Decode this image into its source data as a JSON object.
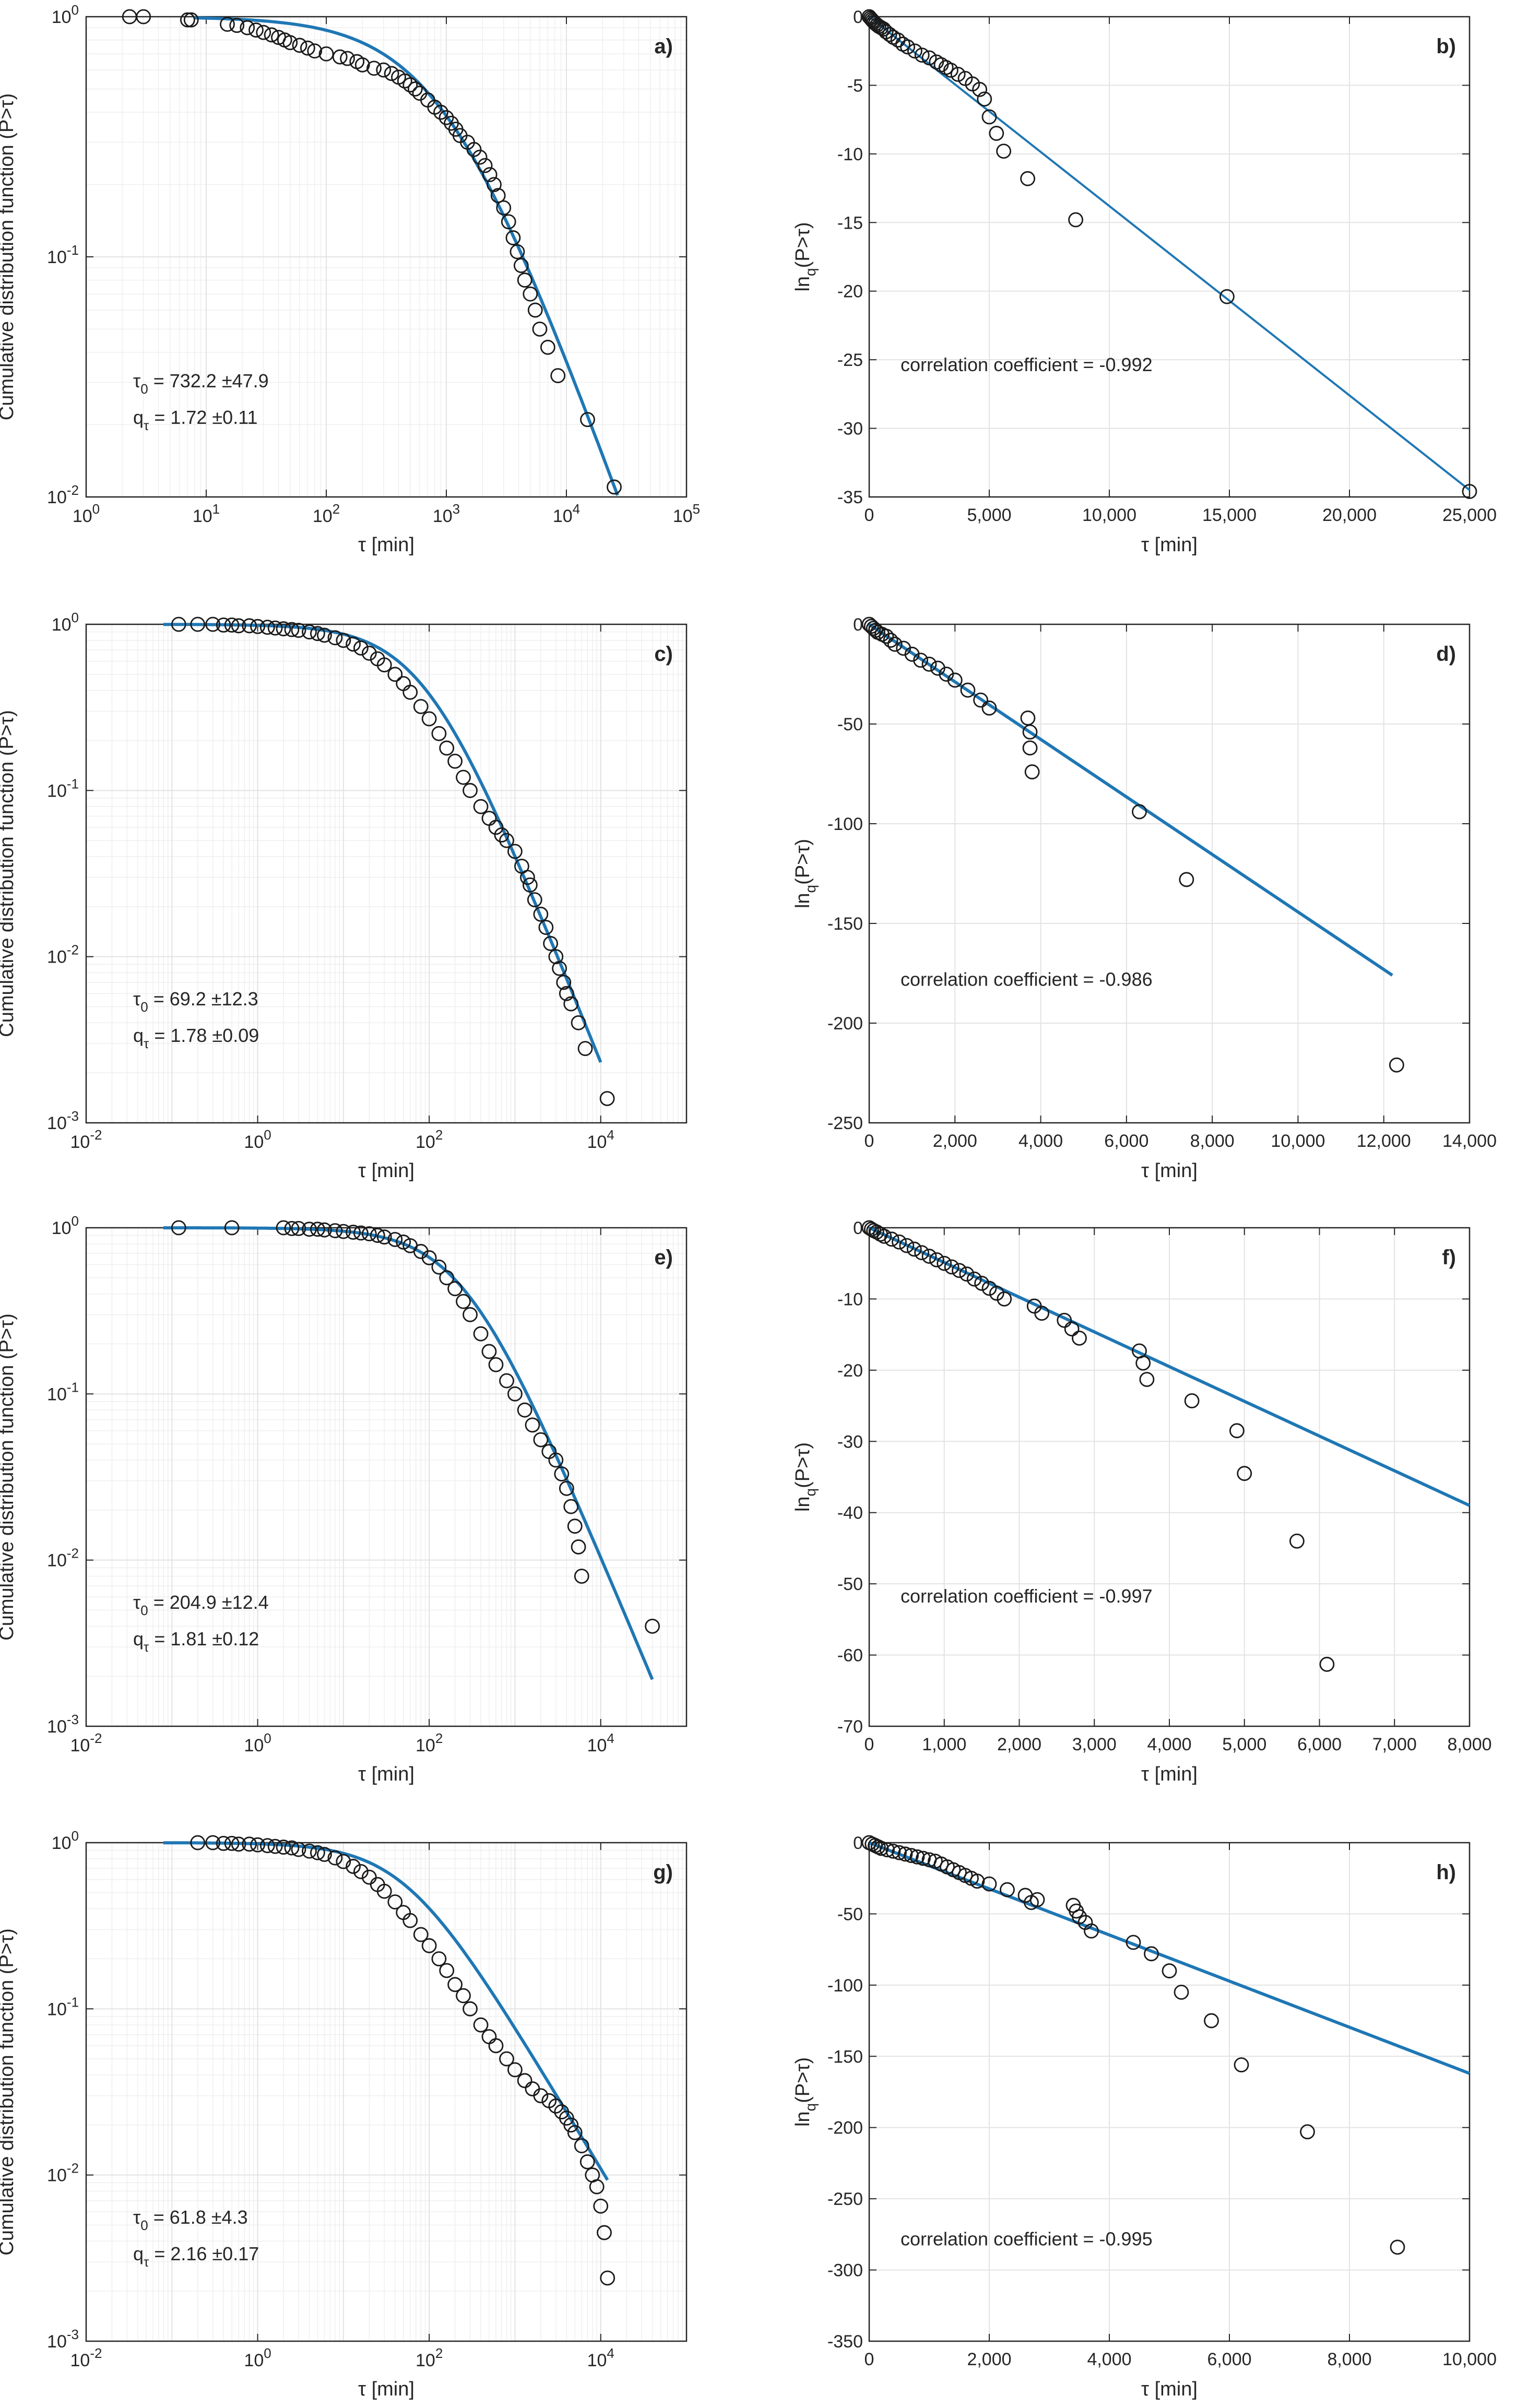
{
  "charts": [
    {
      "id": "a",
      "type": "scatter",
      "panel_label": "a)",
      "xscale": "log",
      "yscale": "log",
      "xlabel": "τ [min]",
      "ylabel": "Cumulative distribution function (P>τ)",
      "xlim": [
        1,
        100000
      ],
      "ylim": [
        0.01,
        1
      ],
      "xticks": [
        1,
        10,
        100,
        1000,
        10000,
        100000
      ],
      "xtick_labels": [
        [
          "10",
          "0"
        ],
        [
          "10",
          "1"
        ],
        [
          "10",
          "2"
        ],
        [
          "10",
          "3"
        ],
        [
          "10",
          "4"
        ],
        [
          "10",
          "5"
        ]
      ],
      "yticks": [
        0.01,
        0.1,
        1
      ],
      "ytick_labels": [
        [
          "10",
          "-2"
        ],
        [
          "10",
          "-1"
        ],
        [
          "10",
          "0"
        ]
      ],
      "tau0": 732.2,
      "q": 1.72,
      "annotations": [
        {
          "base": "τ",
          "sub": "0",
          "rest": " = 732.2 ±47.9"
        },
        {
          "base": "q",
          "sub": "τ",
          "rest": " = 1.72 ±0.11"
        }
      ],
      "grid": true,
      "points_x": [
        2.3,
        3.0,
        7.0,
        7.5,
        15,
        18,
        22,
        26,
        30,
        35,
        40,
        45,
        50,
        60,
        70,
        80,
        100,
        130,
        150,
        180,
        200,
        250,
        300,
        350,
        400,
        450,
        500,
        550,
        600,
        700,
        800,
        900,
        1000,
        1100,
        1200,
        1300,
        1500,
        1700,
        1900,
        2100,
        2300,
        2500,
        2700,
        3000,
        3300,
        3600,
        3900,
        4200,
        4500,
        5000,
        5500,
        6000,
        7000,
        8500,
        15000,
        25000
      ],
      "points_y": [
        1.0,
        1.0,
        0.97,
        0.97,
        0.93,
        0.92,
        0.9,
        0.88,
        0.86,
        0.84,
        0.82,
        0.8,
        0.78,
        0.76,
        0.74,
        0.72,
        0.7,
        0.68,
        0.67,
        0.65,
        0.63,
        0.61,
        0.6,
        0.58,
        0.56,
        0.54,
        0.52,
        0.5,
        0.48,
        0.45,
        0.42,
        0.4,
        0.38,
        0.36,
        0.34,
        0.32,
        0.3,
        0.28,
        0.26,
        0.24,
        0.22,
        0.2,
        0.18,
        0.16,
        0.14,
        0.12,
        0.105,
        0.092,
        0.08,
        0.07,
        0.06,
        0.05,
        0.042,
        0.032,
        0.021,
        0.011
      ]
    },
    {
      "id": "b",
      "type": "scatter",
      "panel_label": "b)",
      "xscale": "linear",
      "yscale": "linear",
      "xlabel": "τ [min]",
      "ylabel_base": "ln",
      "ylabel_sub": "q",
      "ylabel_rest": "(P>τ)",
      "xlim": [
        0,
        25000
      ],
      "ylim": [
        -35,
        0
      ],
      "xticks": [
        0,
        5000,
        10000,
        15000,
        20000,
        25000
      ],
      "xtick_labels": [
        "0",
        "5,000",
        "10,000",
        "15,000",
        "20,000",
        "25,000"
      ],
      "yticks": [
        -35,
        -30,
        -25,
        -20,
        -15,
        -10,
        -5,
        0
      ],
      "ytick_labels": [
        "-35",
        "-30",
        "-25",
        "-20",
        "-15",
        "-10",
        "-5",
        "0"
      ],
      "fit_line": {
        "x": [
          0,
          25000
        ],
        "y": [
          0,
          -34.5
        ]
      },
      "annotation": "correlation coefficient = -0.992",
      "grid": true,
      "points_x": [
        0,
        50,
        100,
        150,
        200,
        260,
        330,
        400,
        500,
        600,
        700,
        850,
        1000,
        1200,
        1400,
        1600,
        1900,
        2200,
        2500,
        2800,
        3000,
        3200,
        3400,
        3700,
        4000,
        4300,
        4600,
        4800,
        5000,
        5300,
        5600,
        6600,
        8600,
        14900,
        25000
      ],
      "points_y": [
        0,
        -0.1,
        -0.2,
        -0.3,
        -0.4,
        -0.5,
        -0.6,
        -0.7,
        -0.8,
        -0.9,
        -1.1,
        -1.3,
        -1.5,
        -1.7,
        -2.0,
        -2.2,
        -2.5,
        -2.8,
        -3.0,
        -3.3,
        -3.5,
        -3.7,
        -3.9,
        -4.2,
        -4.5,
        -4.9,
        -5.3,
        -6.0,
        -7.3,
        -8.5,
        -9.8,
        -11.8,
        -14.8,
        -20.4,
        -34.6
      ]
    },
    {
      "id": "c",
      "type": "scatter",
      "panel_label": "c)",
      "xscale": "log",
      "yscale": "log",
      "xlabel": "τ [min]",
      "ylabel": "Cumulative distribution function (P>τ)",
      "xlim": [
        0.01,
        100000
      ],
      "ylim": [
        0.001,
        1
      ],
      "xticks": [
        0.01,
        1,
        100,
        10000
      ],
      "xtick_labels": [
        [
          "10",
          "-2"
        ],
        [
          "10",
          "0"
        ],
        [
          "10",
          "2"
        ],
        [
          "10",
          "4"
        ]
      ],
      "yticks": [
        0.001,
        0.01,
        0.1,
        1
      ],
      "ytick_labels": [
        [
          "10",
          "-3"
        ],
        [
          "10",
          "-2"
        ],
        [
          "10",
          "-1"
        ],
        [
          "10",
          "0"
        ]
      ],
      "tau0": 69.2,
      "q": 1.78,
      "fit_xmax": 10000,
      "annotations": [
        {
          "base": "τ",
          "sub": "0",
          "rest": " = 69.2 ±12.3"
        },
        {
          "base": "q",
          "sub": "τ",
          "rest": " = 1.78 ±0.09"
        }
      ],
      "grid": true,
      "points_x": [
        0.12,
        0.2,
        0.3,
        0.4,
        0.5,
        0.6,
        0.8,
        1.0,
        1.3,
        1.6,
        2,
        2.5,
        3,
        4,
        5,
        6,
        8,
        10,
        13,
        16,
        20,
        25,
        30,
        40,
        50,
        60,
        80,
        100,
        130,
        160,
        200,
        250,
        300,
        400,
        500,
        600,
        700,
        800,
        1000,
        1200,
        1400,
        1500,
        1700,
        2000,
        2300,
        2600,
        3000,
        3300,
        3700,
        4000,
        4500,
        5500,
        6600,
        11900
      ],
      "points_y": [
        1.0,
        1.0,
        1.0,
        0.99,
        0.99,
        0.98,
        0.98,
        0.97,
        0.96,
        0.95,
        0.94,
        0.93,
        0.92,
        0.9,
        0.88,
        0.86,
        0.83,
        0.8,
        0.76,
        0.72,
        0.67,
        0.62,
        0.57,
        0.5,
        0.44,
        0.39,
        0.32,
        0.27,
        0.22,
        0.18,
        0.15,
        0.12,
        0.1,
        0.08,
        0.068,
        0.06,
        0.054,
        0.05,
        0.043,
        0.035,
        0.03,
        0.027,
        0.022,
        0.018,
        0.015,
        0.012,
        0.01,
        0.0085,
        0.007,
        0.006,
        0.0052,
        0.004,
        0.0028,
        0.0014
      ]
    },
    {
      "id": "d",
      "type": "scatter",
      "panel_label": "d)",
      "xscale": "linear",
      "yscale": "linear",
      "xlabel": "τ [min]",
      "ylabel_base": "ln",
      "ylabel_sub": "q",
      "ylabel_rest": "(P>τ)",
      "xlim": [
        0,
        14000
      ],
      "ylim": [
        -250,
        0
      ],
      "xticks": [
        0,
        2000,
        4000,
        6000,
        8000,
        10000,
        12000,
        14000
      ],
      "xtick_labels": [
        "0",
        "2,000",
        "4,000",
        "6,000",
        "8,000",
        "10,000",
        "12,000",
        "14,000"
      ],
      "yticks": [
        -250,
        -200,
        -150,
        -100,
        -50,
        0
      ],
      "ytick_labels": [
        "-250",
        "-200",
        "-150",
        "-100",
        "-50",
        "0"
      ],
      "fit_line": {
        "x": [
          0,
          12200
        ],
        "y": [
          0,
          -176
        ]
      },
      "annotation": "correlation coefficient = -0.986",
      "grid": true,
      "points_x": [
        0,
        50,
        100,
        150,
        200,
        300,
        400,
        500,
        600,
        800,
        1000,
        1200,
        1400,
        1600,
        1800,
        2000,
        2300,
        2600,
        2800,
        3700,
        3750,
        3750,
        3800,
        6300,
        7400,
        12300
      ],
      "points_y": [
        0,
        -1,
        -2,
        -3,
        -4,
        -5,
        -6,
        -8,
        -10,
        -12,
        -15,
        -18,
        -20,
        -22,
        -25,
        -28,
        -33,
        -38,
        -42,
        -47,
        -54,
        -62,
        -74,
        -94,
        -128,
        -221
      ]
    },
    {
      "id": "e",
      "type": "scatter",
      "panel_label": "e)",
      "xscale": "log",
      "yscale": "log",
      "xlabel": "τ [min]",
      "ylabel": "Cumulative distribution function (P>τ)",
      "xlim": [
        0.01,
        100000
      ],
      "ylim": [
        0.001,
        1
      ],
      "xticks": [
        0.01,
        1,
        100,
        10000
      ],
      "xtick_labels": [
        [
          "10",
          "-2"
        ],
        [
          "10",
          "0"
        ],
        [
          "10",
          "2"
        ],
        [
          "10",
          "4"
        ]
      ],
      "yticks": [
        0.001,
        0.01,
        0.1,
        1
      ],
      "ytick_labels": [
        [
          "10",
          "-3"
        ],
        [
          "10",
          "-2"
        ],
        [
          "10",
          "-1"
        ],
        [
          "10",
          "0"
        ]
      ],
      "tau0": 204.9,
      "q": 1.81,
      "fit_xmax": 40000,
      "annotations": [
        {
          "base": "τ",
          "sub": "0",
          "rest": " = 204.9 ±12.4"
        },
        {
          "base": "q",
          "sub": "τ",
          "rest": " = 1.81 ±0.12"
        }
      ],
      "grid": true,
      "points_x": [
        0.12,
        0.5,
        2,
        2.5,
        3,
        4,
        5,
        6,
        8,
        10,
        13,
        16,
        20,
        25,
        30,
        40,
        50,
        60,
        80,
        100,
        130,
        160,
        200,
        250,
        300,
        400,
        500,
        600,
        800,
        1000,
        1300,
        1600,
        2000,
        2500,
        3000,
        3500,
        4000,
        4500,
        5000,
        5500,
        6000,
        40000
      ],
      "points_y": [
        1.0,
        1.0,
        1.0,
        0.99,
        0.99,
        0.98,
        0.98,
        0.97,
        0.96,
        0.95,
        0.94,
        0.93,
        0.92,
        0.9,
        0.88,
        0.85,
        0.82,
        0.78,
        0.72,
        0.66,
        0.58,
        0.5,
        0.43,
        0.36,
        0.3,
        0.23,
        0.18,
        0.15,
        0.12,
        0.1,
        0.08,
        0.065,
        0.053,
        0.045,
        0.04,
        0.033,
        0.027,
        0.021,
        0.016,
        0.012,
        0.008,
        0.004
      ]
    },
    {
      "id": "f",
      "type": "scatter",
      "panel_label": "f)",
      "xscale": "linear",
      "yscale": "linear",
      "xlabel": "τ [min]",
      "ylabel_base": "ln",
      "ylabel_sub": "q",
      "ylabel_rest": "(P>τ)",
      "xlim": [
        0,
        8000
      ],
      "ylim": [
        -70,
        0
      ],
      "xticks": [
        0,
        1000,
        2000,
        3000,
        4000,
        5000,
        6000,
        7000,
        8000
      ],
      "xtick_labels": [
        "0",
        "1,000",
        "2,000",
        "3,000",
        "4,000",
        "5,000",
        "6,000",
        "7,000",
        "8,000"
      ],
      "yticks": [
        -70,
        -60,
        -50,
        -40,
        -30,
        -20,
        -10,
        0
      ],
      "ytick_labels": [
        "-70",
        "-60",
        "-50",
        "-40",
        "-30",
        "-20",
        "-10",
        "0"
      ],
      "fit_line": {
        "x": [
          0,
          8000
        ],
        "y": [
          0,
          -39
        ]
      },
      "annotation": "correlation coefficient = -0.997",
      "grid": true,
      "points_x": [
        0,
        30,
        60,
        100,
        150,
        200,
        300,
        400,
        500,
        600,
        700,
        800,
        900,
        1000,
        1100,
        1200,
        1300,
        1400,
        1500,
        1600,
        1700,
        1800,
        2200,
        2300,
        2600,
        2700,
        2800,
        3600,
        3650,
        3700,
        4300,
        4900,
        5000,
        5700,
        6100
      ],
      "points_y": [
        0,
        -0.2,
        -0.4,
        -0.6,
        -0.9,
        -1.2,
        -1.6,
        -2.0,
        -2.5,
        -3.0,
        -3.5,
        -4.0,
        -4.5,
        -5.0,
        -5.5,
        -6.0,
        -6.5,
        -7.2,
        -7.8,
        -8.5,
        -9.2,
        -10.0,
        -11.0,
        -12.0,
        -13.0,
        -14.2,
        -15.5,
        -17.3,
        -19.0,
        -21.3,
        -24.3,
        -28.5,
        -34.5,
        -44.0,
        -61.3
      ]
    },
    {
      "id": "g",
      "type": "scatter",
      "panel_label": "g)",
      "xscale": "log",
      "yscale": "log",
      "xlabel": "τ [min]",
      "ylabel": "Cumulative distribution function (P>τ)",
      "xlim": [
        0.01,
        100000
      ],
      "ylim": [
        0.001,
        1
      ],
      "xticks": [
        0.01,
        1,
        100,
        10000
      ],
      "xtick_labels": [
        [
          "10",
          "-2"
        ],
        [
          "10",
          "0"
        ],
        [
          "10",
          "2"
        ],
        [
          "10",
          "4"
        ]
      ],
      "yticks": [
        0.001,
        0.01,
        0.1,
        1
      ],
      "ytick_labels": [
        [
          "10",
          "-3"
        ],
        [
          "10",
          "-2"
        ],
        [
          "10",
          "-1"
        ],
        [
          "10",
          "0"
        ]
      ],
      "tau0": 61.8,
      "q": 2.16,
      "fit_xmax": 12000,
      "annotations": [
        {
          "base": "τ",
          "sub": "0",
          "rest": " = 61.8 ±4.3"
        },
        {
          "base": "q",
          "sub": "τ",
          "rest": " = 2.16 ±0.17"
        }
      ],
      "grid": true,
      "points_x": [
        0.2,
        0.3,
        0.4,
        0.5,
        0.6,
        0.8,
        1.0,
        1.3,
        1.6,
        2,
        2.5,
        3,
        4,
        5,
        6,
        8,
        10,
        13,
        16,
        20,
        25,
        30,
        40,
        50,
        60,
        80,
        100,
        130,
        160,
        200,
        250,
        300,
        400,
        500,
        600,
        800,
        1000,
        1300,
        1600,
        2000,
        2500,
        3000,
        3500,
        4000,
        4500,
        5000,
        6000,
        7000,
        8000,
        9000,
        10000,
        11000,
        12000
      ],
      "points_y": [
        1.0,
        1.0,
        0.99,
        0.99,
        0.98,
        0.98,
        0.97,
        0.96,
        0.95,
        0.94,
        0.93,
        0.91,
        0.89,
        0.87,
        0.85,
        0.81,
        0.77,
        0.72,
        0.67,
        0.62,
        0.56,
        0.51,
        0.44,
        0.38,
        0.34,
        0.28,
        0.24,
        0.2,
        0.17,
        0.14,
        0.12,
        0.1,
        0.08,
        0.068,
        0.06,
        0.05,
        0.043,
        0.037,
        0.033,
        0.03,
        0.028,
        0.026,
        0.024,
        0.022,
        0.02,
        0.018,
        0.015,
        0.012,
        0.01,
        0.0085,
        0.0065,
        0.0045,
        0.0024
      ]
    },
    {
      "id": "h",
      "type": "scatter",
      "panel_label": "h)",
      "xscale": "linear",
      "yscale": "linear",
      "xlabel": "τ [min]",
      "ylabel_base": "ln",
      "ylabel_sub": "q",
      "ylabel_rest": "(P>τ)",
      "xlim": [
        0,
        10000
      ],
      "ylim": [
        -350,
        0
      ],
      "xticks": [
        0,
        2000,
        4000,
        6000,
        8000,
        10000
      ],
      "xtick_labels": [
        "0",
        "2,000",
        "4,000",
        "6,000",
        "8,000",
        "10,000"
      ],
      "yticks": [
        -350,
        -300,
        -250,
        -200,
        -150,
        -100,
        -50,
        0
      ],
      "ytick_labels": [
        "-350",
        "-300",
        "-250",
        "-200",
        "-150",
        "-100",
        "-50",
        "0"
      ],
      "fit_line": {
        "x": [
          0,
          10000
        ],
        "y": [
          0,
          -162
        ]
      },
      "annotation": "correlation coefficient = -0.995",
      "grid": true,
      "points_x": [
        0,
        50,
        100,
        150,
        200,
        300,
        400,
        500,
        600,
        700,
        800,
        900,
        1000,
        1100,
        1200,
        1300,
        1400,
        1500,
        1600,
        1700,
        1800,
        2000,
        2300,
        2600,
        2700,
        2800,
        3400,
        3450,
        3500,
        3600,
        3700,
        4400,
        4700,
        5000,
        5200,
        5700,
        6200,
        7300,
        8800
      ],
      "points_y": [
        0,
        -1,
        -2,
        -3,
        -4,
        -5,
        -6,
        -7,
        -8,
        -9,
        -10,
        -11,
        -12,
        -13,
        -15,
        -17,
        -19,
        -21,
        -23,
        -25,
        -27,
        -29,
        -33,
        -37,
        -42,
        -40,
        -44,
        -48,
        -52,
        -56,
        -62,
        -70,
        -78,
        -90,
        -105,
        -125,
        -156,
        -203,
        -284
      ]
    }
  ]
}
